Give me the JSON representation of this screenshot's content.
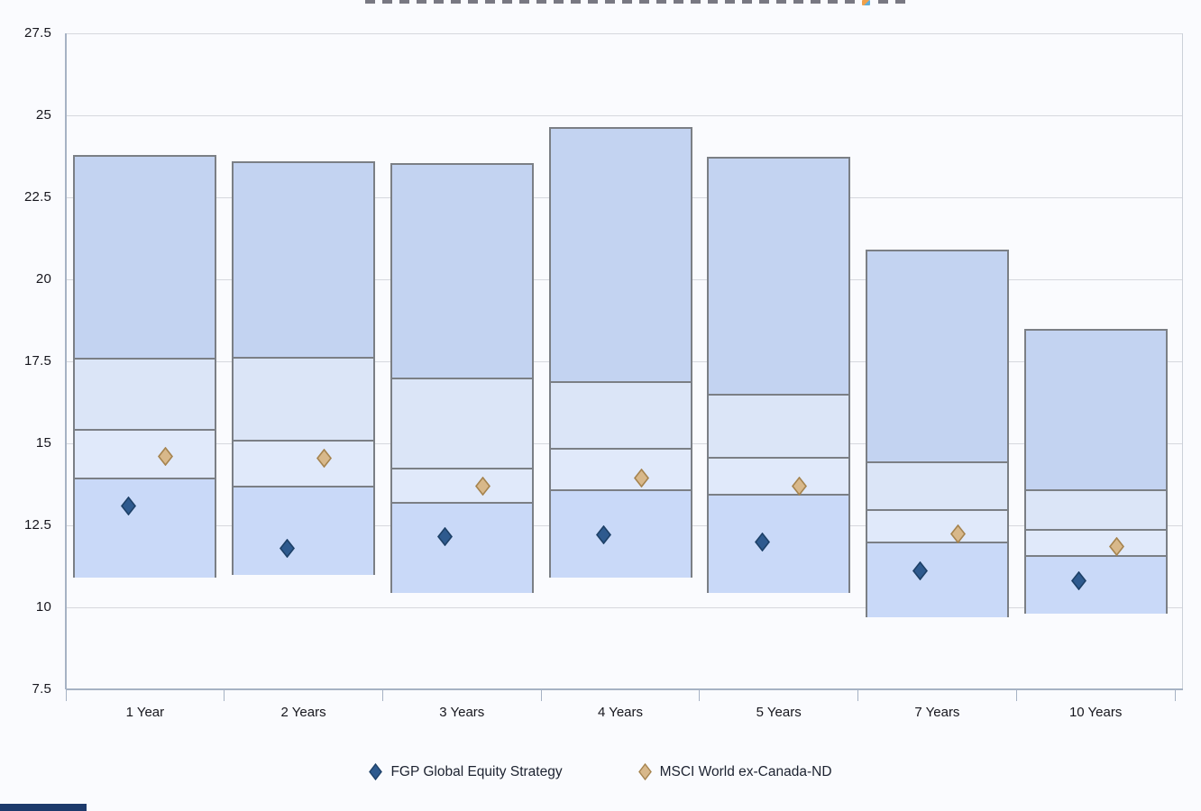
{
  "page": {
    "background": "#fafbfe"
  },
  "chart_data": {
    "type": "box-floating-bar",
    "title": "",
    "categories": [
      "1 Year",
      "2 Years",
      "3 Years",
      "4 Years",
      "5 Years",
      "7 Years",
      "10 Years"
    ],
    "xlabel": "",
    "ylabel": "",
    "ylim": [
      7.5,
      27.5
    ],
    "ytick_step": 2.5,
    "ytick_labels": [
      "27.5",
      "25",
      "22.5",
      "20",
      "17.5",
      "15",
      "12.5",
      "10",
      "7.5"
    ],
    "grid": true,
    "legend_position": "bottom",
    "boxes": [
      {
        "category": "1 Year",
        "top": 23.8,
        "upper": 17.6,
        "mid": 15.45,
        "lower": 13.95,
        "bottom": 10.9
      },
      {
        "category": "2 Years",
        "top": 23.6,
        "upper": 17.65,
        "mid": 15.1,
        "lower": 13.7,
        "bottom": 11.0
      },
      {
        "category": "3 Years",
        "top": 23.55,
        "upper": 17.0,
        "mid": 14.25,
        "lower": 13.2,
        "bottom": 10.45
      },
      {
        "category": "4 Years",
        "top": 24.65,
        "upper": 16.9,
        "mid": 14.85,
        "lower": 13.6,
        "bottom": 10.9
      },
      {
        "category": "5 Years",
        "top": 23.75,
        "upper": 16.5,
        "mid": 14.6,
        "lower": 13.45,
        "bottom": 10.45
      },
      {
        "category": "7 Years",
        "top": 20.9,
        "upper": 14.45,
        "mid": 13.0,
        "lower": 12.0,
        "bottom": 9.7
      },
      {
        "category": "10 Years",
        "top": 18.5,
        "upper": 13.6,
        "mid": 12.4,
        "lower": 11.6,
        "bottom": 9.8
      }
    ],
    "segment_colors_top_to_bottom": [
      "#c3d3f1",
      "#dbe5f7",
      "#e0e9fa",
      "#c9d9f8"
    ],
    "box_border_color": "#7b7f85",
    "series": [
      {
        "name": "FGP Global Equity Strategy",
        "marker": "diamond",
        "fill": "#2e5a8e",
        "stroke": "#1d4067",
        "values": [
          13.1,
          11.8,
          12.15,
          12.2,
          12.0,
          11.1,
          10.8
        ]
      },
      {
        "name": "MSCI World ex-Canada-ND",
        "marker": "diamond",
        "fill": "#d8b88a",
        "stroke": "#a5834e",
        "values": [
          14.6,
          14.55,
          13.7,
          13.95,
          13.7,
          12.25,
          11.85
        ]
      }
    ],
    "axis_color": "#a6b2c4",
    "gridline_color": "#d6d8dd",
    "label_color": "#16161d"
  }
}
